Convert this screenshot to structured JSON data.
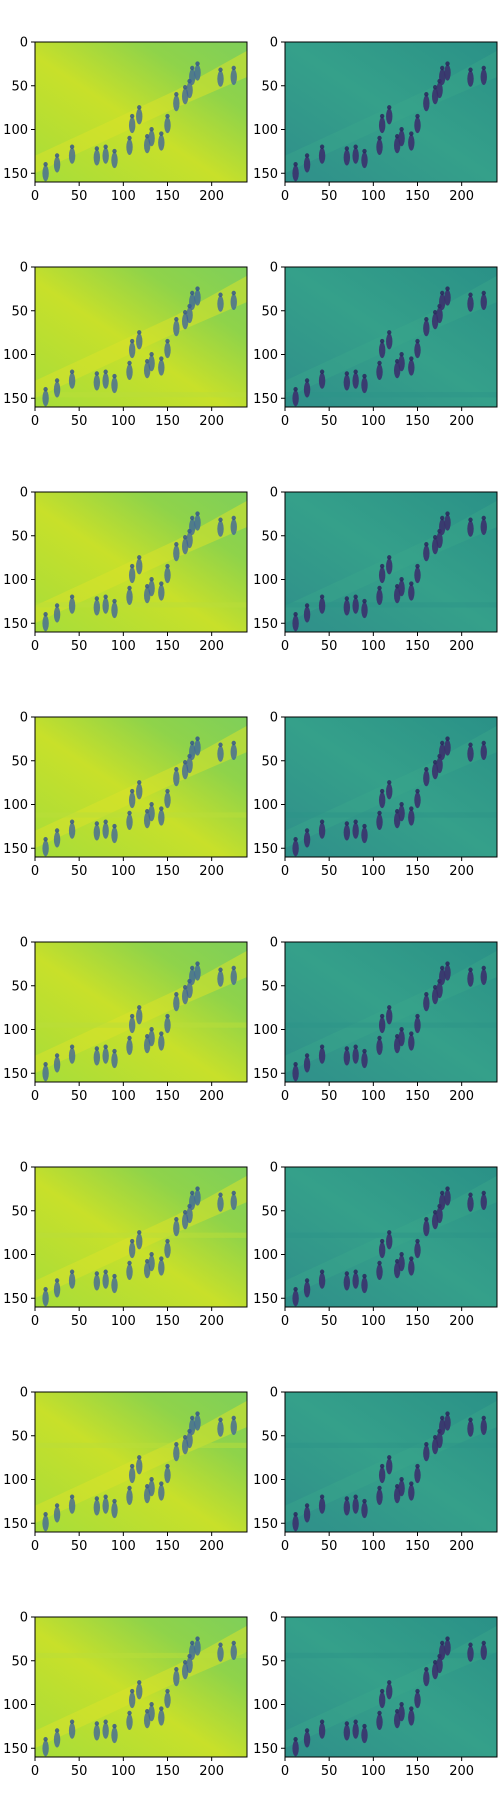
{
  "chart_data": {
    "type": "heatmap",
    "rows": 8,
    "cols": 2,
    "colormap": "viridis",
    "image_shape": [
      160,
      240
    ],
    "xlim": [
      0,
      240
    ],
    "ylim": [
      160,
      0
    ],
    "xticks": [
      0,
      50,
      100,
      150,
      200
    ],
    "yticks": [
      0,
      50,
      100,
      150
    ],
    "panel_tint": {
      "left": "#8fd34a",
      "right": "#2a9a8a"
    },
    "figures": [
      {
        "description": "people walking on a slope",
        "subject_color": "#3b2a6b"
      }
    ]
  }
}
